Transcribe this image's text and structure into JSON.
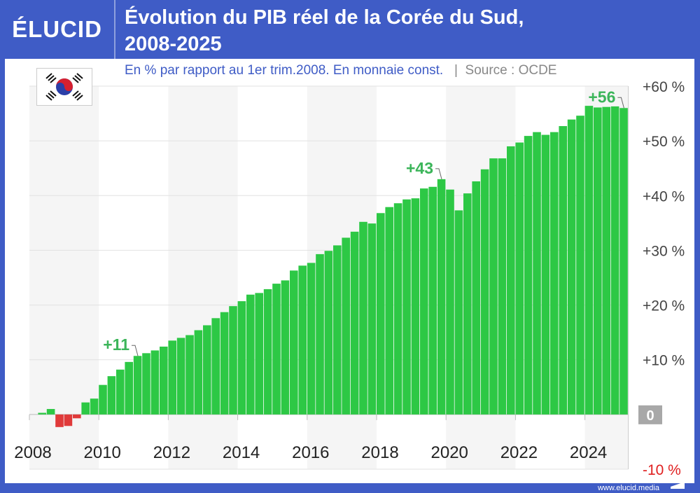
{
  "brand": {
    "logo": "ÉLUCID",
    "footer": "www.elucid.media"
  },
  "header": {
    "title_line1": "Évolution du PIB réel de la Corée du Sud,",
    "title_line2": "2008-2025"
  },
  "subtitle": {
    "text": "En % par rapport au 1er trim.2008. En monnaie const.",
    "separator": "|",
    "source": "Source : OCDE"
  },
  "flag": {
    "icon": "south-korea-flag-icon"
  },
  "colors": {
    "frame": "#3f5cc6",
    "positive": "#2dc845",
    "negative": "#e03a3a",
    "annotation": "#3cb55a",
    "negative_label": "#e02020"
  },
  "chart_data": {
    "type": "bar",
    "frequency": "quarterly",
    "x_start": "2008-Q1",
    "x_end": "2025-Q1",
    "x_tick_labels": [
      "2008",
      "2010",
      "2012",
      "2014",
      "2016",
      "2018",
      "2020",
      "2022",
      "2024"
    ],
    "y_tick_labels": [
      "-10 %",
      "0",
      "+10 %",
      "+20 %",
      "+30 %",
      "+40 %",
      "+50 %",
      "+60 %"
    ],
    "y_ticks": [
      -10,
      0,
      10,
      20,
      30,
      40,
      50,
      60
    ],
    "ylim": [
      -10,
      60
    ],
    "grid": true,
    "values": [
      0,
      0.3,
      1.0,
      -2.3,
      -2.1,
      -0.7,
      2.2,
      2.9,
      5.4,
      7.0,
      8.2,
      9.6,
      10.7,
      11.2,
      11.7,
      12.4,
      13.5,
      14.0,
      14.5,
      15.4,
      16.3,
      17.6,
      18.7,
      19.8,
      20.7,
      21.9,
      22.2,
      22.9,
      23.9,
      24.5,
      26.3,
      27.2,
      27.7,
      29.3,
      29.9,
      30.9,
      32.3,
      33.4,
      35.2,
      34.9,
      36.8,
      37.9,
      38.6,
      39.3,
      39.5,
      41.3,
      41.6,
      43.0,
      41.1,
      37.3,
      40.4,
      42.6,
      44.8,
      46.8,
      46.8,
      49.0,
      49.7,
      50.9,
      51.6,
      51.1,
      51.6,
      52.7,
      53.9,
      54.6,
      56.4,
      56.1,
      56.2,
      56.3,
      56.0
    ],
    "annotations": [
      {
        "label": "+11",
        "index": 12
      },
      {
        "label": "+43",
        "index": 47
      },
      {
        "label": "+56",
        "index": 68
      }
    ]
  }
}
